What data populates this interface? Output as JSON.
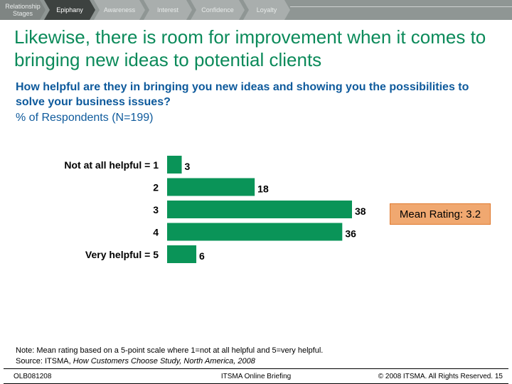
{
  "nav": {
    "stages_label": "Relationship Stages",
    "items": [
      "Epiphany",
      "Awareness",
      "Interest",
      "Confidence",
      "Loyalty"
    ],
    "active_index": 0
  },
  "title": "Likewise, there is room for improvement when it comes to bringing new ideas to potential clients",
  "question": "How helpful are they in bringing you new ideas and showing you the possibilities to solve your business issues?",
  "respondents": "% of Respondents (N=199)",
  "mean_rating": "Mean Rating: 3.2",
  "note": {
    "line1": "Note: Mean rating based on a 5-point scale where 1=not at all helpful and 5=very helpful.",
    "source_prefix": "Source: ITSMA, ",
    "source_title": "How Customers Choose Study, North America, 2008"
  },
  "footer": {
    "left": "OLB081208",
    "center": "ITSMA Online Briefing",
    "right": "© 2008 ITSMA. All Rights Reserved. 15"
  },
  "colors": {
    "bar": "#0a9458",
    "title": "#0b8a5a",
    "question": "#0e5a9c",
    "mean_box": "#f0a870"
  },
  "chart_data": {
    "type": "bar",
    "orientation": "horizontal",
    "categories": [
      "Not at all helpful = 1",
      "2",
      "3",
      "4",
      "Very helpful = 5"
    ],
    "values": [
      3,
      18,
      38,
      36,
      6
    ],
    "unit": "% of Respondents",
    "xlim": [
      0,
      38
    ]
  }
}
